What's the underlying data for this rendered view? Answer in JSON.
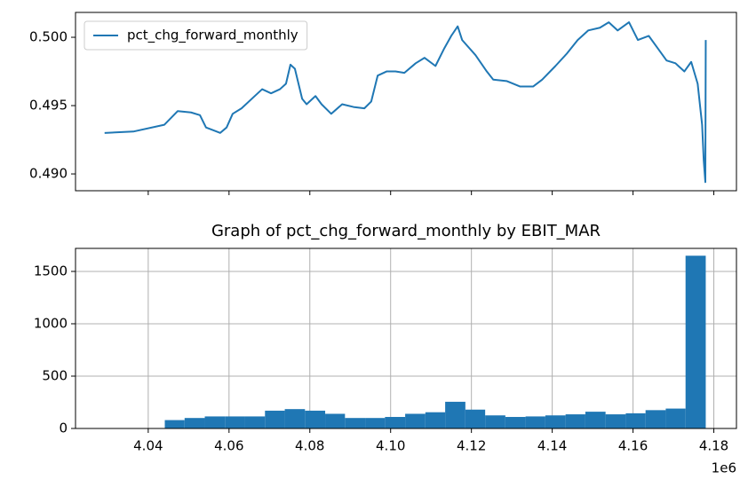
{
  "chart_data": [
    {
      "type": "line",
      "x": [
        4.0292,
        4.0363,
        4.044,
        4.0473,
        4.0506,
        4.0528,
        4.0543,
        4.0561,
        4.0578,
        4.0594,
        4.0609,
        4.0631,
        4.066,
        4.0682,
        4.0704,
        4.0726,
        4.0741,
        4.0752,
        4.0763,
        4.0781,
        4.0792,
        4.0814,
        4.0829,
        4.0853,
        4.088,
        4.0908,
        4.0935,
        4.0952,
        4.0968,
        4.099,
        4.1012,
        4.1034,
        4.1062,
        4.1084,
        4.1111,
        4.1133,
        4.115,
        4.1166,
        4.1177,
        4.121,
        4.1238,
        4.1254,
        4.1287,
        4.132,
        4.1353,
        4.1375,
        4.1408,
        4.1436,
        4.1463,
        4.1489,
        4.1518,
        4.154,
        4.1562,
        4.159,
        4.1612,
        4.1639,
        4.1661,
        4.1683,
        4.1705,
        4.1727,
        4.1744,
        4.176,
        4.1771,
        4.1775,
        4.1779,
        4.178
      ],
      "series": [
        {
          "name": "pct_chg_forward_monthly",
          "color": "#1f77b4",
          "values": [
            0.493,
            0.4931,
            0.4936,
            0.4946,
            0.4945,
            0.4943,
            0.4934,
            0.4932,
            0.493,
            0.4934,
            0.4944,
            0.4948,
            0.4956,
            0.4962,
            0.4959,
            0.4962,
            0.4966,
            0.498,
            0.4977,
            0.4955,
            0.4951,
            0.4957,
            0.4951,
            0.4944,
            0.4951,
            0.4949,
            0.4948,
            0.4953,
            0.4972,
            0.4975,
            0.4975,
            0.4974,
            0.4981,
            0.4985,
            0.4979,
            0.4992,
            0.5001,
            0.5008,
            0.4998,
            0.4987,
            0.4975,
            0.4969,
            0.4968,
            0.4964,
            0.4964,
            0.4969,
            0.4979,
            0.4988,
            0.4998,
            0.5005,
            0.5007,
            0.5011,
            0.5005,
            0.5011,
            0.4998,
            0.5001,
            0.4992,
            0.4983,
            0.4981,
            0.4975,
            0.4982,
            0.4966,
            0.4936,
            0.491,
            0.4894,
            0.4998
          ]
        }
      ],
      "xlim": [
        4.022,
        4.1856
      ],
      "ylim": [
        0.48877,
        0.50182
      ],
      "yticks": [
        {
          "value": 0.49,
          "label": "0.490"
        },
        0.495,
        {
          "value": 0.5,
          "label": "0.500"
        }
      ],
      "legend": "upper left"
    },
    {
      "type": "histogram",
      "title": "Graph of pct_chg_forward_monthly by EBIT_MAR",
      "bins": [
        4.0292,
        4.0342,
        4.0391,
        4.0441,
        4.049,
        4.054,
        4.059,
        4.0639,
        4.0689,
        4.0738,
        4.0788,
        4.0838,
        4.0887,
        4.0937,
        4.0986,
        4.1036,
        4.1086,
        4.1135,
        4.1185,
        4.1234,
        4.1284,
        4.1334,
        4.1383,
        4.1433,
        4.1482,
        4.1532,
        4.1582,
        4.1631,
        4.1681,
        4.173,
        4.178
      ],
      "values": [
        1,
        1,
        1,
        80,
        100,
        115,
        115,
        115,
        170,
        185,
        170,
        140,
        100,
        100,
        110,
        140,
        155,
        255,
        180,
        125,
        110,
        115,
        125,
        135,
        160,
        135,
        145,
        175,
        190,
        1650
      ],
      "color": "#1f77b4",
      "xlim": [
        4.022,
        4.1856
      ],
      "xticks": [
        4.04,
        4.06,
        4.08,
        {
          "value": 4.1,
          "label": "4.10"
        },
        4.12,
        4.14,
        4.16,
        4.18
      ],
      "x_offset_label": "1e6",
      "ylim": [
        0,
        1720
      ],
      "yticks": [
        0,
        500,
        1000,
        1500
      ],
      "grid": true
    }
  ]
}
